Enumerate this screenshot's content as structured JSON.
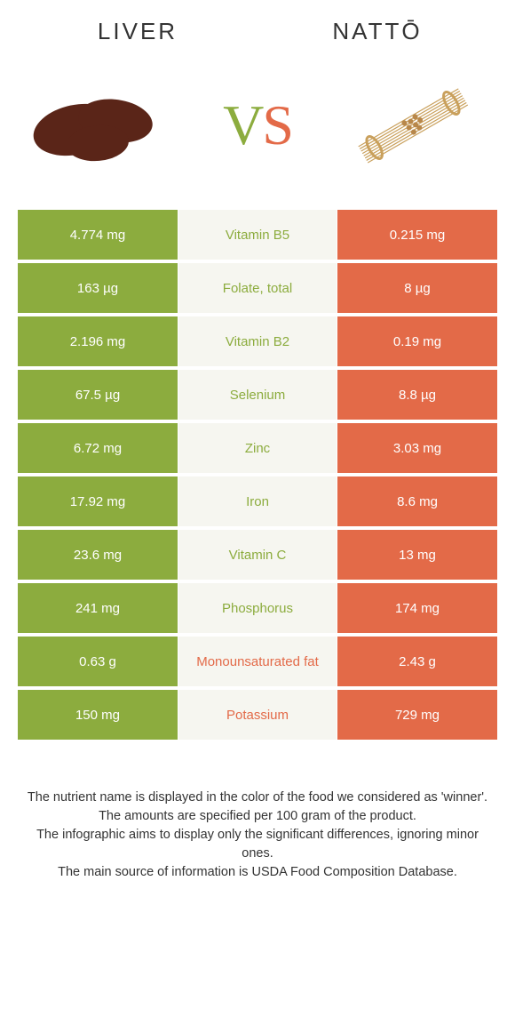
{
  "header": {
    "left_title": "LIVER",
    "right_title": "NATTŌ"
  },
  "vs": {
    "v": "V",
    "s": "S"
  },
  "colors": {
    "left": "#8cac3e",
    "right": "#e36a48",
    "mid_bg": "#f6f6f0"
  },
  "rows": [
    {
      "left": "4.774 mg",
      "label": "Vitamin B5",
      "winner": "left",
      "right": "0.215 mg"
    },
    {
      "left": "163 µg",
      "label": "Folate, total",
      "winner": "left",
      "right": "8 µg"
    },
    {
      "left": "2.196 mg",
      "label": "Vitamin B2",
      "winner": "left",
      "right": "0.19 mg"
    },
    {
      "left": "67.5 µg",
      "label": "Selenium",
      "winner": "left",
      "right": "8.8 µg"
    },
    {
      "left": "6.72 mg",
      "label": "Zinc",
      "winner": "left",
      "right": "3.03 mg"
    },
    {
      "left": "17.92 mg",
      "label": "Iron",
      "winner": "left",
      "right": "8.6 mg"
    },
    {
      "left": "23.6 mg",
      "label": "Vitamin C",
      "winner": "left",
      "right": "13 mg"
    },
    {
      "left": "241 mg",
      "label": "Phosphorus",
      "winner": "left",
      "right": "174 mg"
    },
    {
      "left": "0.63 g",
      "label": "Monounsaturated fat",
      "winner": "right",
      "right": "2.43 g"
    },
    {
      "left": "150 mg",
      "label": "Potassium",
      "winner": "right",
      "right": "729 mg"
    }
  ],
  "footer": {
    "line1": "The nutrient name is displayed in the color of the food we considered as 'winner'.",
    "line2": "The amounts are specified per 100 gram of the product.",
    "line3": "The infographic aims to display only the significant differences, ignoring minor ones.",
    "line4": "The main source of information is USDA Food Composition Database."
  }
}
